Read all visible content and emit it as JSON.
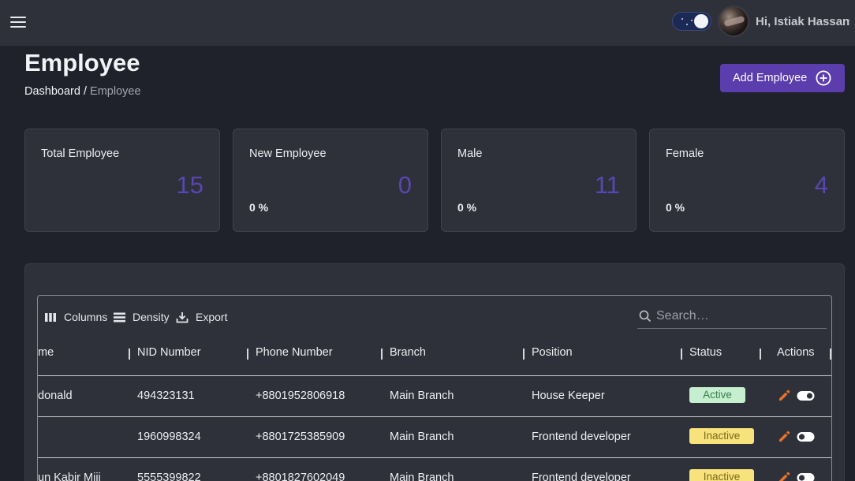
{
  "header": {
    "user_greeting": "Hi, Istiak Hassan"
  },
  "page": {
    "title": "Employee",
    "breadcrumb": {
      "link": "Dashboard",
      "separator": " / ",
      "current": "Employee"
    },
    "add_button_label": "Add Employee"
  },
  "stats": [
    {
      "label": "Total Employee",
      "value": "15",
      "percent": ""
    },
    {
      "label": "New Employee",
      "value": "0",
      "percent": "0 %"
    },
    {
      "label": "Male",
      "value": "11",
      "percent": "0 %"
    },
    {
      "label": "Female",
      "value": "4",
      "percent": "0 %"
    }
  ],
  "toolbar": {
    "columns_label": "Columns",
    "density_label": "Density",
    "export_label": "Export",
    "search_placeholder": "Search…"
  },
  "table": {
    "columns": [
      "me",
      "NID Number",
      "Phone Number",
      "Branch",
      "Position",
      "Status",
      "Actions"
    ],
    "rows": [
      {
        "name": "donald",
        "nid": "494323131",
        "phone": "+8801952806918",
        "branch": "Main Branch",
        "position": "House Keeper",
        "status": "Active"
      },
      {
        "name": "",
        "nid": "1960998324",
        "phone": "+8801725385909",
        "branch": "Main Branch",
        "position": "Frontend developer",
        "status": "Inactive"
      },
      {
        "name": "un Kabir Miji",
        "nid": "5555399822",
        "phone": "+8801827602049",
        "branch": "Main Branch",
        "position": "Frontend developer",
        "status": "Inactive"
      }
    ]
  },
  "colors": {
    "accent": "#5c3dad",
    "stat_value": "#5a46b3",
    "active_badge": "#c5efcf",
    "inactive_badge": "#f8e27b",
    "edit_icon": "#e8732a"
  }
}
